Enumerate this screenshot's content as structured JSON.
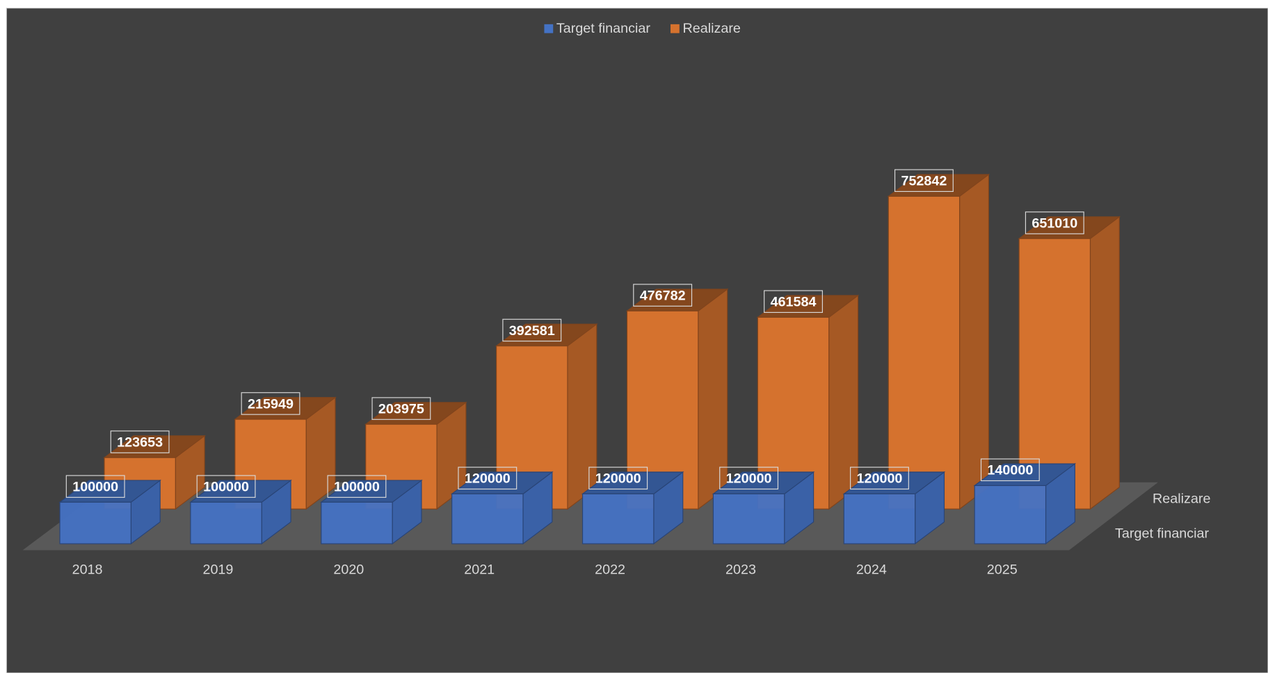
{
  "chart_data": {
    "type": "bar3d",
    "categories": [
      "2018",
      "2019",
      "2020",
      "2021",
      "2022",
      "2023",
      "2024",
      "2025"
    ],
    "series": [
      {
        "name": "Target financiar",
        "color": "#4472c4",
        "values": [
          100000,
          100000,
          100000,
          120000,
          120000,
          120000,
          120000,
          140000
        ]
      },
      {
        "name": "Realizare",
        "color": "#d5722e",
        "values": [
          123653,
          215949,
          203975,
          392581,
          476782,
          461584,
          752842,
          651010
        ]
      }
    ],
    "legend": "top"
  }
}
